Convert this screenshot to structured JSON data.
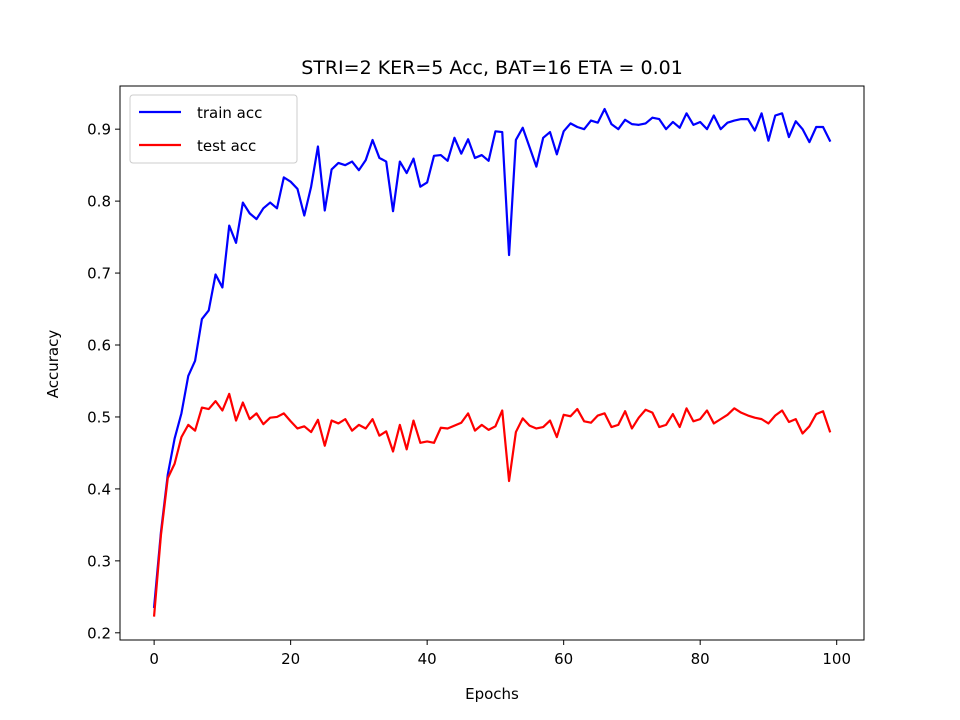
{
  "chart_data": {
    "type": "line",
    "title": "STRI=2 KER=5 Acc, BAT=16 ETA = 0.01",
    "xlabel": "Epochs",
    "ylabel": "Accuracy",
    "xlim": [
      -5,
      104
    ],
    "ylim": [
      0.19,
      0.96
    ],
    "xticks": [
      0,
      20,
      40,
      60,
      80,
      100
    ],
    "yticks": [
      0.2,
      0.3,
      0.4,
      0.5,
      0.6,
      0.7,
      0.8,
      0.9
    ],
    "grid": false,
    "legend_position": "top-left",
    "x": [
      0,
      1,
      2,
      3,
      4,
      5,
      6,
      7,
      8,
      9,
      10,
      11,
      12,
      13,
      14,
      15,
      16,
      17,
      18,
      19,
      20,
      21,
      22,
      23,
      24,
      25,
      26,
      27,
      28,
      29,
      30,
      31,
      32,
      33,
      34,
      35,
      36,
      37,
      38,
      39,
      40,
      41,
      42,
      43,
      44,
      45,
      46,
      47,
      48,
      49,
      50,
      51,
      52,
      53,
      54,
      55,
      56,
      57,
      58,
      59,
      60,
      61,
      62,
      63,
      64,
      65,
      66,
      67,
      68,
      69,
      70,
      71,
      72,
      73,
      74,
      75,
      76,
      77,
      78,
      79,
      80,
      81,
      82,
      83,
      84,
      85,
      86,
      87,
      88,
      89,
      90,
      91,
      92,
      93,
      94,
      95,
      96,
      97,
      98,
      99
    ],
    "series": [
      {
        "name": "train acc",
        "color": "#0000ff",
        "values": [
          0.236,
          0.34,
          0.42,
          0.47,
          0.505,
          0.557,
          0.578,
          0.636,
          0.648,
          0.698,
          0.68,
          0.766,
          0.742,
          0.798,
          0.783,
          0.775,
          0.79,
          0.798,
          0.79,
          0.833,
          0.827,
          0.817,
          0.78,
          0.82,
          0.876,
          0.787,
          0.844,
          0.853,
          0.85,
          0.855,
          0.843,
          0.857,
          0.885,
          0.86,
          0.855,
          0.786,
          0.855,
          0.839,
          0.859,
          0.82,
          0.826,
          0.863,
          0.864,
          0.856,
          0.888,
          0.866,
          0.886,
          0.86,
          0.864,
          0.856,
          0.897,
          0.896,
          0.725,
          0.885,
          0.902,
          0.875,
          0.848,
          0.888,
          0.896,
          0.865,
          0.897,
          0.908,
          0.903,
          0.9,
          0.912,
          0.909,
          0.928,
          0.907,
          0.9,
          0.913,
          0.907,
          0.906,
          0.908,
          0.916,
          0.914,
          0.9,
          0.91,
          0.902,
          0.922,
          0.906,
          0.91,
          0.9,
          0.919,
          0.9,
          0.909,
          0.912,
          0.914,
          0.914,
          0.898,
          0.922,
          0.884,
          0.919,
          0.922,
          0.889,
          0.911,
          0.9,
          0.882,
          0.903,
          0.903,
          0.884
        ]
      },
      {
        "name": "test acc",
        "color": "#ff0000",
        "values": [
          0.224,
          0.336,
          0.415,
          0.435,
          0.472,
          0.489,
          0.481,
          0.513,
          0.511,
          0.522,
          0.509,
          0.532,
          0.495,
          0.52,
          0.497,
          0.505,
          0.49,
          0.499,
          0.5,
          0.505,
          0.494,
          0.484,
          0.487,
          0.479,
          0.496,
          0.46,
          0.495,
          0.491,
          0.497,
          0.481,
          0.489,
          0.484,
          0.497,
          0.474,
          0.48,
          0.452,
          0.489,
          0.455,
          0.495,
          0.464,
          0.466,
          0.464,
          0.485,
          0.484,
          0.488,
          0.492,
          0.505,
          0.481,
          0.489,
          0.482,
          0.487,
          0.509,
          0.411,
          0.479,
          0.498,
          0.488,
          0.484,
          0.486,
          0.495,
          0.472,
          0.503,
          0.501,
          0.511,
          0.494,
          0.492,
          0.502,
          0.505,
          0.486,
          0.489,
          0.508,
          0.484,
          0.499,
          0.51,
          0.506,
          0.486,
          0.489,
          0.504,
          0.486,
          0.512,
          0.494,
          0.497,
          0.509,
          0.491,
          0.497,
          0.503,
          0.512,
          0.506,
          0.502,
          0.499,
          0.497,
          0.491,
          0.502,
          0.509,
          0.493,
          0.497,
          0.477,
          0.487,
          0.504,
          0.508,
          0.48
        ]
      }
    ]
  }
}
